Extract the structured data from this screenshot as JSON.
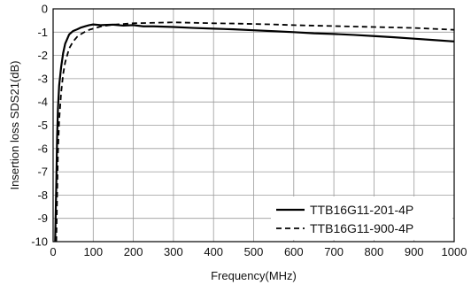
{
  "chart_data": {
    "type": "line",
    "title": "",
    "xlabel": "Frequency(MHz)",
    "ylabel": "Insertion loss SDS21(dB)",
    "xlim": [
      0,
      1000
    ],
    "ylim": [
      -10,
      0
    ],
    "xticks": [
      0,
      100,
      200,
      300,
      400,
      500,
      600,
      700,
      800,
      900,
      1000
    ],
    "yticks": [
      0,
      -1,
      -2,
      -3,
      -4,
      -5,
      -6,
      -7,
      -8,
      -9,
      -10
    ],
    "grid": true,
    "legend_position": "bottom-right",
    "series": [
      {
        "name": "TTB16G11-201-4P",
        "style": "solid",
        "color": "#000000",
        "x": [
          5,
          8,
          10,
          12,
          15,
          20,
          25,
          30,
          40,
          50,
          60,
          70,
          80,
          90,
          100,
          120,
          150,
          175,
          200,
          225,
          250,
          300,
          350,
          400,
          450,
          500,
          550,
          600,
          650,
          700,
          750,
          800,
          850,
          900,
          950,
          1000
        ],
        "y": [
          -10,
          -7.5,
          -5.5,
          -4.3,
          -3.3,
          -2.5,
          -1.9,
          -1.5,
          -1.1,
          -0.95,
          -0.88,
          -0.8,
          -0.75,
          -0.7,
          -0.67,
          -0.7,
          -0.68,
          -0.72,
          -0.7,
          -0.75,
          -0.75,
          -0.78,
          -0.82,
          -0.85,
          -0.88,
          -0.92,
          -0.96,
          -1.0,
          -1.05,
          -1.08,
          -1.12,
          -1.17,
          -1.22,
          -1.28,
          -1.34,
          -1.4
        ]
      },
      {
        "name": "TTB16G11-900-4P",
        "style": "dashed",
        "color": "#000000",
        "x": [
          8,
          10,
          12,
          15,
          20,
          25,
          30,
          40,
          50,
          60,
          70,
          80,
          90,
          100,
          120,
          150,
          175,
          200,
          250,
          300,
          350,
          400,
          450,
          500,
          550,
          600,
          650,
          700,
          750,
          800,
          850,
          900,
          950,
          1000
        ],
        "y": [
          -10,
          -8,
          -6.2,
          -4.8,
          -3.6,
          -2.8,
          -2.3,
          -1.7,
          -1.4,
          -1.2,
          -1.08,
          -0.98,
          -0.9,
          -0.85,
          -0.75,
          -0.68,
          -0.65,
          -0.62,
          -0.6,
          -0.58,
          -0.6,
          -0.62,
          -0.63,
          -0.65,
          -0.67,
          -0.7,
          -0.72,
          -0.74,
          -0.76,
          -0.78,
          -0.8,
          -0.82,
          -0.86,
          -0.9
        ]
      }
    ]
  }
}
